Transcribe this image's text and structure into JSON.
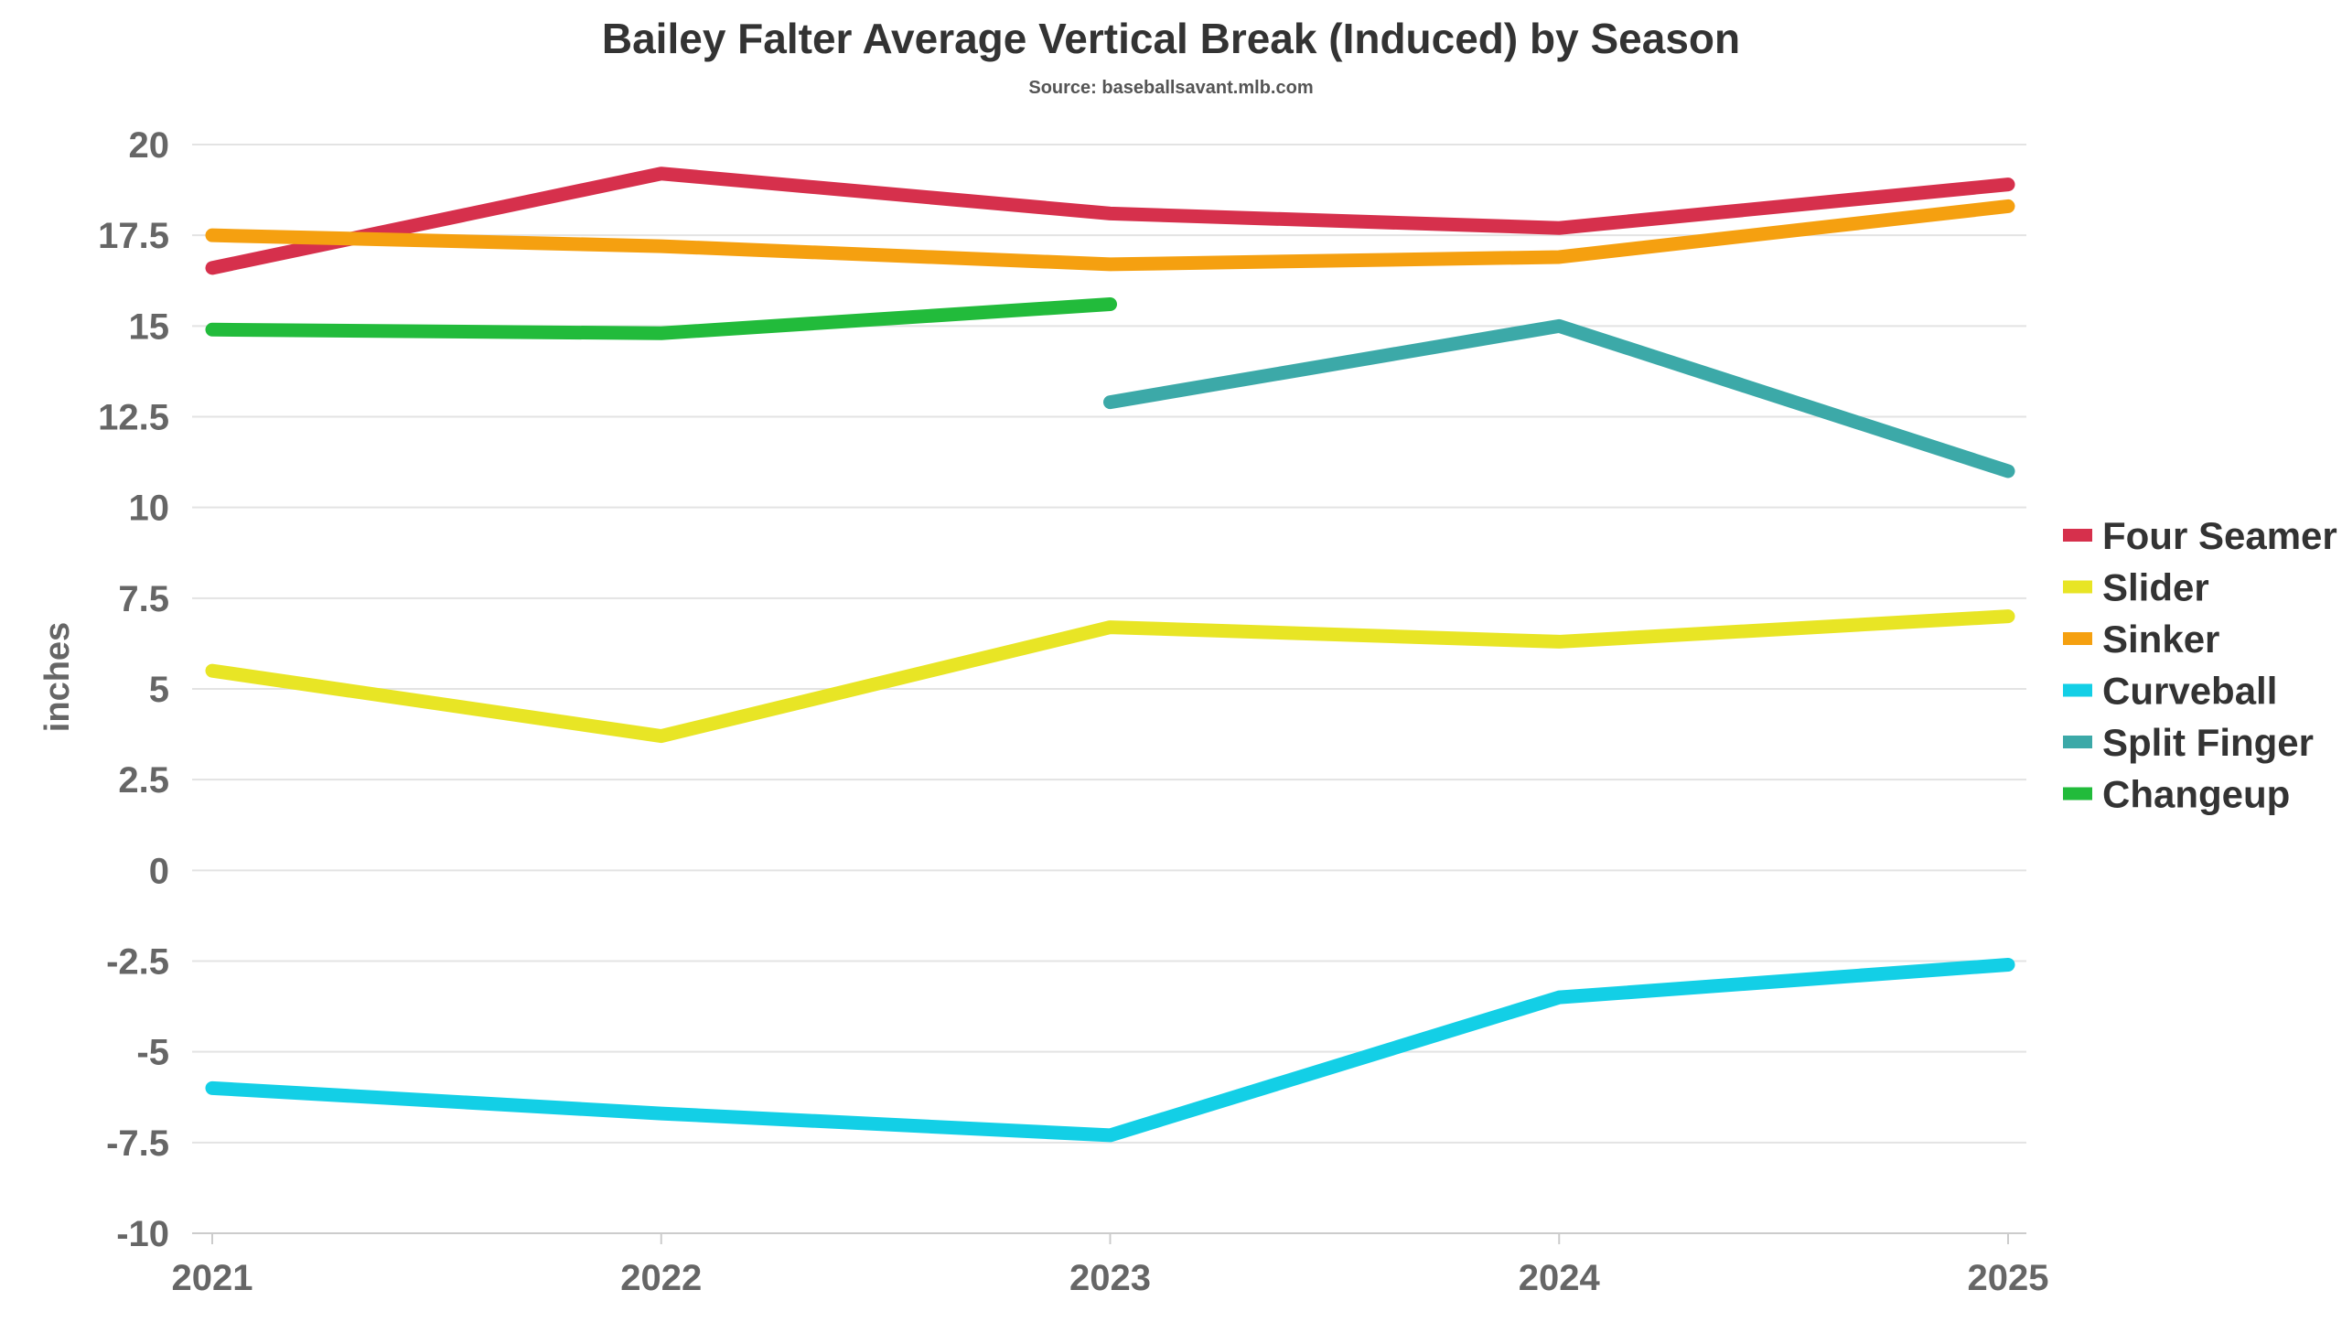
{
  "chart_data": {
    "type": "line",
    "title": "Bailey Falter Average Vertical Break (Induced) by Season",
    "subtitle": "Source: baseballsavant.mlb.com",
    "xlabel": "",
    "ylabel": "inches",
    "x": [
      "2021",
      "2022",
      "2023",
      "2024",
      "2025"
    ],
    "xlim": [
      2021,
      2025
    ],
    "ylim": [
      -10,
      20
    ],
    "yticks": [
      20,
      17.5,
      15,
      12.5,
      10,
      7.5,
      5,
      2.5,
      0,
      -2.5,
      -5,
      -7.5,
      -10
    ],
    "ytick_labels": [
      "20",
      "17.5",
      "15",
      "12.5",
      "10",
      "7.5",
      "5",
      "2.5",
      "0",
      "-2.5",
      "-5",
      "-7.5",
      "-10"
    ],
    "grid": true,
    "legend_position": "right",
    "series": [
      {
        "name": "Four Seamer",
        "color": "#d6304c",
        "values": [
          16.6,
          19.2,
          18.1,
          17.7,
          18.9
        ]
      },
      {
        "name": "Slider",
        "color": "#e8e525",
        "values": [
          5.5,
          3.7,
          6.7,
          6.3,
          7.0
        ]
      },
      {
        "name": "Sinker",
        "color": "#f5a010",
        "values": [
          17.5,
          17.2,
          16.7,
          16.9,
          18.3
        ]
      },
      {
        "name": "Curveball",
        "color": "#13cfe6",
        "values": [
          -6.0,
          -6.7,
          -7.3,
          -3.5,
          -2.6
        ]
      },
      {
        "name": "Split Finger",
        "color": "#3ca9a8",
        "values": [
          null,
          null,
          12.9,
          15.0,
          11.0
        ]
      },
      {
        "name": "Changeup",
        "color": "#22bb3b",
        "values": [
          14.9,
          14.8,
          15.6,
          null,
          null
        ]
      }
    ]
  }
}
